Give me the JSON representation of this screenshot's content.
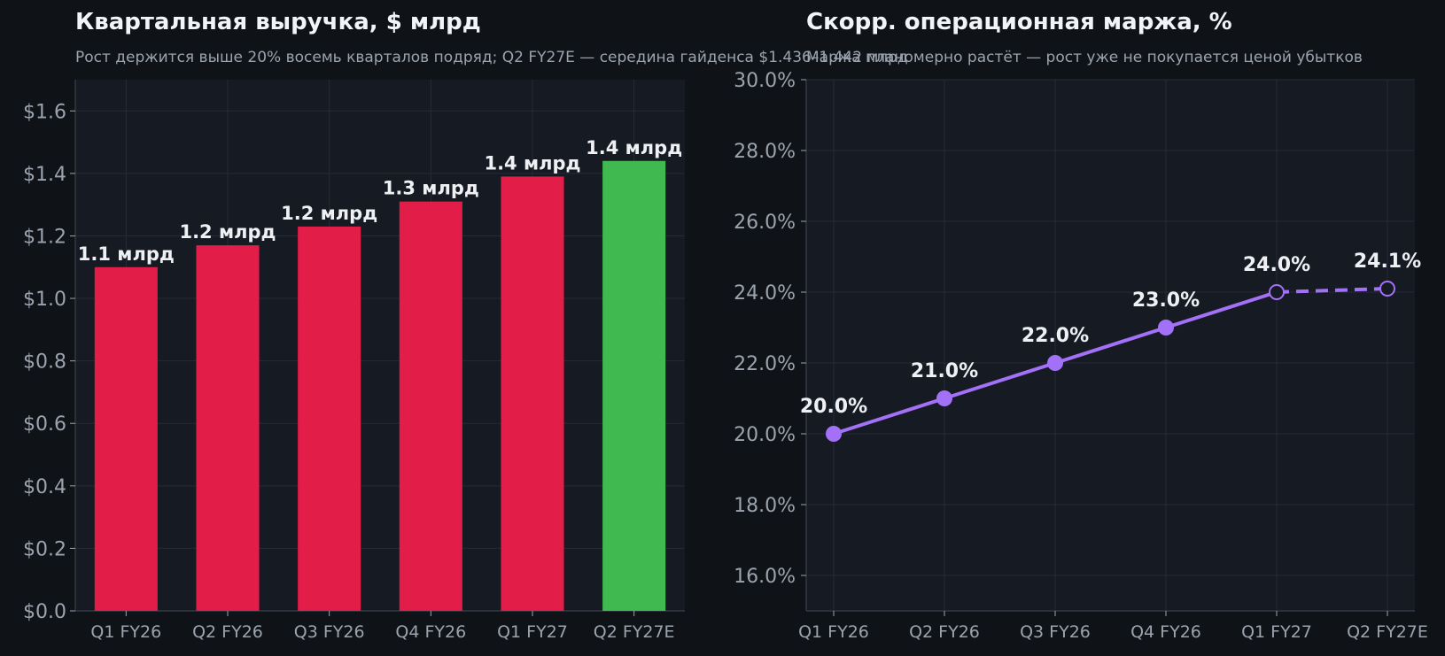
{
  "colors": {
    "background": "#0f1318",
    "plot_background": "#161a22",
    "grid": "#262b35",
    "bar_actual": "#e11d48",
    "bar_estimate": "#3fb950",
    "line": "#a371f7"
  },
  "chart_data": [
    {
      "type": "bar",
      "title": "Квартальная выручка, $ млрд",
      "subtitle": "Рост держится выше 20% восемь кварталов подряд; Q2 FY27E — середина гайденса $1.436–1.442 млрд",
      "categories": [
        "Q1 FY26",
        "Q2 FY26",
        "Q3 FY26",
        "Q4 FY26",
        "Q1 FY27",
        "Q2 FY27E"
      ],
      "values": [
        1.1,
        1.17,
        1.23,
        1.31,
        1.39,
        1.44
      ],
      "value_labels": [
        "1.1 млрд",
        "1.2 млрд",
        "1.2 млрд",
        "1.3 млрд",
        "1.4 млрд",
        "1.4 млрд"
      ],
      "estimate_flags": [
        false,
        false,
        false,
        false,
        false,
        true
      ],
      "ylim": [
        0,
        1.7
      ],
      "yticks": [
        0.0,
        0.2,
        0.4,
        0.6,
        0.8,
        1.0,
        1.2,
        1.4,
        1.6
      ],
      "ytick_labels": [
        "$0.0",
        "$0.2",
        "$0.4",
        "$0.6",
        "$0.8",
        "$1.0",
        "$1.2",
        "$1.4",
        "$1.6"
      ],
      "grid": true
    },
    {
      "type": "line",
      "title": "Скорр. операционная маржа, %",
      "subtitle": "Маржа планомерно растёт — рост уже не покупается ценой убытков",
      "categories": [
        "Q1 FY26",
        "Q2 FY26",
        "Q3 FY26",
        "Q4 FY26",
        "Q1 FY27",
        "Q2 FY27E"
      ],
      "values": [
        20.0,
        21.0,
        22.0,
        23.0,
        24.0,
        24.1
      ],
      "value_labels": [
        "20.0%",
        "21.0%",
        "22.0%",
        "23.0%",
        "24.0%",
        "24.1%"
      ],
      "hollow_markers": [
        false,
        false,
        false,
        false,
        true,
        true
      ],
      "dashed_from_index": 4,
      "ylim": [
        15,
        30
      ],
      "yticks": [
        16,
        18,
        20,
        22,
        24,
        26,
        28,
        30
      ],
      "ytick_labels": [
        "16.0%",
        "18.0%",
        "20.0%",
        "22.0%",
        "24.0%",
        "26.0%",
        "28.0%",
        "30.0%"
      ],
      "grid": true
    }
  ]
}
